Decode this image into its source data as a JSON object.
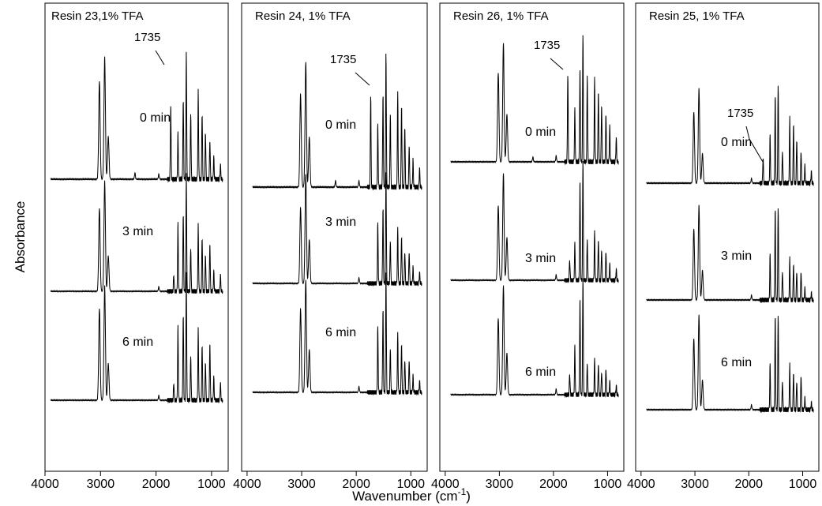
{
  "figure": {
    "ylabel": "Absorbance",
    "xlabel_main": "Wavenumber (cm",
    "xlabel_sup": "-1",
    "xlabel_close": ")"
  },
  "chart_data": [
    {
      "type": "line",
      "title": "Resin 23,1% TFA",
      "xlabel": "Wavenumber (cm-1)",
      "ylabel": "Absorbance",
      "xlim": [
        4000,
        700
      ],
      "x_ticks": [
        4000,
        3000,
        2000,
        1000
      ],
      "y_ticks_shown": false,
      "annotation": {
        "label": "1735",
        "x": 1735
      },
      "series": [
        {
          "name": "0 min",
          "peaks": [
            {
              "x": 3020,
              "h": 0.8
            },
            {
              "x": 2925,
              "h": 1.0
            },
            {
              "x": 2860,
              "h": 0.35
            },
            {
              "x": 2380,
              "h": 0.05
            },
            {
              "x": 1950,
              "h": 0.04
            },
            {
              "x": 1735,
              "h": 0.62
            },
            {
              "x": 1605,
              "h": 0.38
            },
            {
              "x": 1510,
              "h": 0.65
            },
            {
              "x": 1455,
              "h": 1.07
            },
            {
              "x": 1375,
              "h": 0.55
            },
            {
              "x": 1240,
              "h": 0.72
            },
            {
              "x": 1170,
              "h": 0.55
            },
            {
              "x": 1110,
              "h": 0.4
            },
            {
              "x": 1030,
              "h": 0.33
            },
            {
              "x": 960,
              "h": 0.18
            },
            {
              "x": 840,
              "h": 0.12
            }
          ]
        },
        {
          "name": "3 min",
          "peaks": [
            {
              "x": 3020,
              "h": 0.75
            },
            {
              "x": 2925,
              "h": 1.0
            },
            {
              "x": 2860,
              "h": 0.32
            },
            {
              "x": 1950,
              "h": 0.04
            },
            {
              "x": 1680,
              "h": 0.15
            },
            {
              "x": 1605,
              "h": 0.62
            },
            {
              "x": 1510,
              "h": 0.7
            },
            {
              "x": 1455,
              "h": 1.1
            },
            {
              "x": 1375,
              "h": 0.4
            },
            {
              "x": 1240,
              "h": 0.6
            },
            {
              "x": 1170,
              "h": 0.5
            },
            {
              "x": 1110,
              "h": 0.35
            },
            {
              "x": 1030,
              "h": 0.45
            },
            {
              "x": 960,
              "h": 0.18
            },
            {
              "x": 840,
              "h": 0.15
            }
          ]
        },
        {
          "name": "6 min",
          "peaks": [
            {
              "x": 3020,
              "h": 0.8
            },
            {
              "x": 2925,
              "h": 1.0
            },
            {
              "x": 2860,
              "h": 0.32
            },
            {
              "x": 1950,
              "h": 0.04
            },
            {
              "x": 1680,
              "h": 0.15
            },
            {
              "x": 1605,
              "h": 0.65
            },
            {
              "x": 1510,
              "h": 0.75
            },
            {
              "x": 1455,
              "h": 1.15
            },
            {
              "x": 1375,
              "h": 0.4
            },
            {
              "x": 1240,
              "h": 0.62
            },
            {
              "x": 1170,
              "h": 0.5
            },
            {
              "x": 1110,
              "h": 0.35
            },
            {
              "x": 1030,
              "h": 0.52
            },
            {
              "x": 960,
              "h": 0.2
            },
            {
              "x": 840,
              "h": 0.15
            }
          ]
        }
      ]
    },
    {
      "type": "line",
      "title": "Resin 24, 1% TFA",
      "xlabel": "Wavenumber (cm-1)",
      "ylabel": "Absorbance",
      "xlim": [
        4100,
        700
      ],
      "x_ticks": [
        4000,
        3000,
        2000,
        1000
      ],
      "y_ticks_shown": false,
      "annotation": {
        "label": "1735",
        "x": 1735
      },
      "series": [
        {
          "name": "0 min",
          "peaks": [
            {
              "x": 3020,
              "h": 0.75
            },
            {
              "x": 2925,
              "h": 1.0
            },
            {
              "x": 2860,
              "h": 0.4
            },
            {
              "x": 2380,
              "h": 0.05
            },
            {
              "x": 1950,
              "h": 0.05
            },
            {
              "x": 1735,
              "h": 0.75
            },
            {
              "x": 1605,
              "h": 0.5
            },
            {
              "x": 1510,
              "h": 0.75
            },
            {
              "x": 1455,
              "h": 1.1
            },
            {
              "x": 1375,
              "h": 0.6
            },
            {
              "x": 1240,
              "h": 0.75
            },
            {
              "x": 1170,
              "h": 0.68
            },
            {
              "x": 1110,
              "h": 0.5
            },
            {
              "x": 1030,
              "h": 0.35
            },
            {
              "x": 960,
              "h": 0.22
            },
            {
              "x": 840,
              "h": 0.15
            }
          ]
        },
        {
          "name": "3 min",
          "peaks": [
            {
              "x": 3020,
              "h": 0.7
            },
            {
              "x": 2925,
              "h": 1.0
            },
            {
              "x": 2860,
              "h": 0.4
            },
            {
              "x": 1950,
              "h": 0.05
            },
            {
              "x": 1605,
              "h": 0.55
            },
            {
              "x": 1510,
              "h": 0.7
            },
            {
              "x": 1455,
              "h": 1.05
            },
            {
              "x": 1375,
              "h": 0.4
            },
            {
              "x": 1240,
              "h": 0.5
            },
            {
              "x": 1170,
              "h": 0.45
            },
            {
              "x": 1110,
              "h": 0.3
            },
            {
              "x": 1030,
              "h": 0.3
            },
            {
              "x": 960,
              "h": 0.15
            },
            {
              "x": 840,
              "h": 0.1
            }
          ]
        },
        {
          "name": "6 min",
          "peaks": [
            {
              "x": 3020,
              "h": 0.75
            },
            {
              "x": 2925,
              "h": 1.0
            },
            {
              "x": 2860,
              "h": 0.38
            },
            {
              "x": 1950,
              "h": 0.05
            },
            {
              "x": 1605,
              "h": 0.58
            },
            {
              "x": 1510,
              "h": 0.75
            },
            {
              "x": 1455,
              "h": 1.1
            },
            {
              "x": 1375,
              "h": 0.4
            },
            {
              "x": 1240,
              "h": 0.52
            },
            {
              "x": 1170,
              "h": 0.45
            },
            {
              "x": 1110,
              "h": 0.3
            },
            {
              "x": 1030,
              "h": 0.3
            },
            {
              "x": 960,
              "h": 0.15
            },
            {
              "x": 840,
              "h": 0.1
            }
          ]
        }
      ]
    },
    {
      "type": "line",
      "title": "Resin 26, 1% TFA",
      "xlabel": "Wavenumber (cm-1)",
      "ylabel": "Absorbance",
      "xlim": [
        4100,
        700
      ],
      "x_ticks": [
        4000,
        3000,
        2000,
        1000
      ],
      "y_ticks_shown": false,
      "annotation": {
        "label": "1735",
        "x": 1735
      },
      "series": [
        {
          "name": "0 min",
          "peaks": [
            {
              "x": 3020,
              "h": 0.75
            },
            {
              "x": 2925,
              "h": 1.0
            },
            {
              "x": 2860,
              "h": 0.4
            },
            {
              "x": 2380,
              "h": 0.04
            },
            {
              "x": 1950,
              "h": 0.05
            },
            {
              "x": 1735,
              "h": 0.75
            },
            {
              "x": 1605,
              "h": 0.45
            },
            {
              "x": 1510,
              "h": 0.8
            },
            {
              "x": 1455,
              "h": 1.1
            },
            {
              "x": 1375,
              "h": 0.75
            },
            {
              "x": 1240,
              "h": 0.7
            },
            {
              "x": 1170,
              "h": 0.62
            },
            {
              "x": 1110,
              "h": 0.5
            },
            {
              "x": 1030,
              "h": 0.42
            },
            {
              "x": 960,
              "h": 0.3
            },
            {
              "x": 840,
              "h": 0.2
            }
          ]
        },
        {
          "name": "3 min",
          "peaks": [
            {
              "x": 3020,
              "h": 0.7
            },
            {
              "x": 2925,
              "h": 1.0
            },
            {
              "x": 2860,
              "h": 0.4
            },
            {
              "x": 1950,
              "h": 0.05
            },
            {
              "x": 1700,
              "h": 0.2
            },
            {
              "x": 1605,
              "h": 0.35
            },
            {
              "x": 1510,
              "h": 0.95
            },
            {
              "x": 1455,
              "h": 1.15
            },
            {
              "x": 1375,
              "h": 0.4
            },
            {
              "x": 1240,
              "h": 0.45
            },
            {
              "x": 1170,
              "h": 0.4
            },
            {
              "x": 1110,
              "h": 0.3
            },
            {
              "x": 1030,
              "h": 0.28
            },
            {
              "x": 960,
              "h": 0.15
            },
            {
              "x": 840,
              "h": 0.1
            }
          ]
        },
        {
          "name": "6 min",
          "peaks": [
            {
              "x": 3020,
              "h": 0.7
            },
            {
              "x": 2925,
              "h": 1.0
            },
            {
              "x": 2860,
              "h": 0.38
            },
            {
              "x": 1950,
              "h": 0.05
            },
            {
              "x": 1700,
              "h": 0.2
            },
            {
              "x": 1605,
              "h": 0.45
            },
            {
              "x": 1510,
              "h": 0.9
            },
            {
              "x": 1455,
              "h": 1.1
            },
            {
              "x": 1375,
              "h": 0.3
            },
            {
              "x": 1240,
              "h": 0.32
            },
            {
              "x": 1170,
              "h": 0.3
            },
            {
              "x": 1110,
              "h": 0.22
            },
            {
              "x": 1030,
              "h": 0.25
            },
            {
              "x": 960,
              "h": 0.12
            },
            {
              "x": 840,
              "h": 0.08
            }
          ]
        }
      ]
    },
    {
      "type": "line",
      "title": "Resin 25, 1% TFA",
      "xlabel": "Wavenumber (cm-1)",
      "ylabel": "Absorbance",
      "xlim": [
        4100,
        700
      ],
      "x_ticks": [
        4000,
        3000,
        2000,
        1000
      ],
      "y_ticks_shown": false,
      "annotation": {
        "label": "1735",
        "x": 1735
      },
      "series": [
        {
          "name": "0 min",
          "peaks": [
            {
              "x": 3020,
              "h": 0.6
            },
            {
              "x": 2925,
              "h": 0.8
            },
            {
              "x": 2860,
              "h": 0.25
            },
            {
              "x": 1950,
              "h": 0.04
            },
            {
              "x": 1735,
              "h": 0.22
            },
            {
              "x": 1605,
              "h": 0.4
            },
            {
              "x": 1510,
              "h": 0.75
            },
            {
              "x": 1455,
              "h": 0.85
            },
            {
              "x": 1375,
              "h": 0.28
            },
            {
              "x": 1240,
              "h": 0.55
            },
            {
              "x": 1170,
              "h": 0.52
            },
            {
              "x": 1110,
              "h": 0.38
            },
            {
              "x": 1030,
              "h": 0.28
            },
            {
              "x": 960,
              "h": 0.15
            },
            {
              "x": 840,
              "h": 0.1
            }
          ]
        },
        {
          "name": "3 min",
          "peaks": [
            {
              "x": 3020,
              "h": 0.6
            },
            {
              "x": 2925,
              "h": 0.8
            },
            {
              "x": 2860,
              "h": 0.25
            },
            {
              "x": 1950,
              "h": 0.04
            },
            {
              "x": 1605,
              "h": 0.38
            },
            {
              "x": 1510,
              "h": 0.78
            },
            {
              "x": 1455,
              "h": 0.8
            },
            {
              "x": 1375,
              "h": 0.25
            },
            {
              "x": 1240,
              "h": 0.35
            },
            {
              "x": 1170,
              "h": 0.32
            },
            {
              "x": 1110,
              "h": 0.25
            },
            {
              "x": 1030,
              "h": 0.25
            },
            {
              "x": 960,
              "h": 0.1
            },
            {
              "x": 840,
              "h": 0.06
            }
          ]
        },
        {
          "name": "6 min",
          "peaks": [
            {
              "x": 3020,
              "h": 0.6
            },
            {
              "x": 2925,
              "h": 0.8
            },
            {
              "x": 2860,
              "h": 0.25
            },
            {
              "x": 1950,
              "h": 0.04
            },
            {
              "x": 1605,
              "h": 0.38
            },
            {
              "x": 1510,
              "h": 0.8
            },
            {
              "x": 1455,
              "h": 0.82
            },
            {
              "x": 1375,
              "h": 0.25
            },
            {
              "x": 1240,
              "h": 0.38
            },
            {
              "x": 1170,
              "h": 0.33
            },
            {
              "x": 1110,
              "h": 0.25
            },
            {
              "x": 1030,
              "h": 0.3
            },
            {
              "x": 960,
              "h": 0.1
            },
            {
              "x": 840,
              "h": 0.06
            }
          ]
        }
      ]
    }
  ]
}
